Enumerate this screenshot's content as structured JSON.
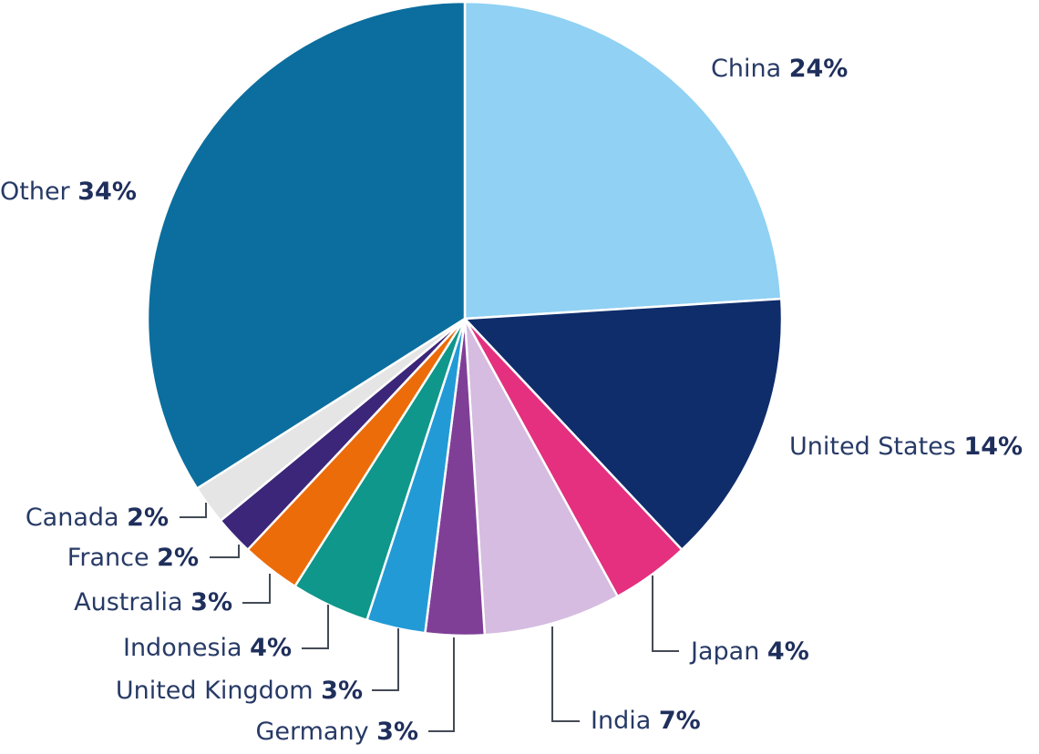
{
  "chart_data": {
    "type": "pie",
    "title": "",
    "start_angle_deg": 0,
    "direction": "clockwise",
    "slices": [
      {
        "label": "China",
        "pct_label": "24%",
        "value": 24,
        "color": "#90d1f4"
      },
      {
        "label": "United States",
        "pct_label": "14%",
        "value": 14,
        "color": "#0f2d6b"
      },
      {
        "label": "Japan",
        "pct_label": "4%",
        "value": 4,
        "color": "#e4307f"
      },
      {
        "label": "India",
        "pct_label": "7%",
        "value": 7,
        "color": "#d5bce0"
      },
      {
        "label": "Germany",
        "pct_label": "3%",
        "value": 3,
        "color": "#7f3f97"
      },
      {
        "label": "United Kingdom",
        "pct_label": "3%",
        "value": 3,
        "color": "#229ad6"
      },
      {
        "label": "Indonesia",
        "pct_label": "4%",
        "value": 4,
        "color": "#0e978a"
      },
      {
        "label": "Australia",
        "pct_label": "3%",
        "value": 3,
        "color": "#ec6c0a"
      },
      {
        "label": "France",
        "pct_label": "2%",
        "value": 2,
        "color": "#3b2679"
      },
      {
        "label": "Canada",
        "pct_label": "2%",
        "value": 2,
        "color": "#e5e5e5"
      },
      {
        "label": "Other",
        "pct_label": "34%",
        "value": 34,
        "color": "#0b6e9e"
      }
    ]
  }
}
